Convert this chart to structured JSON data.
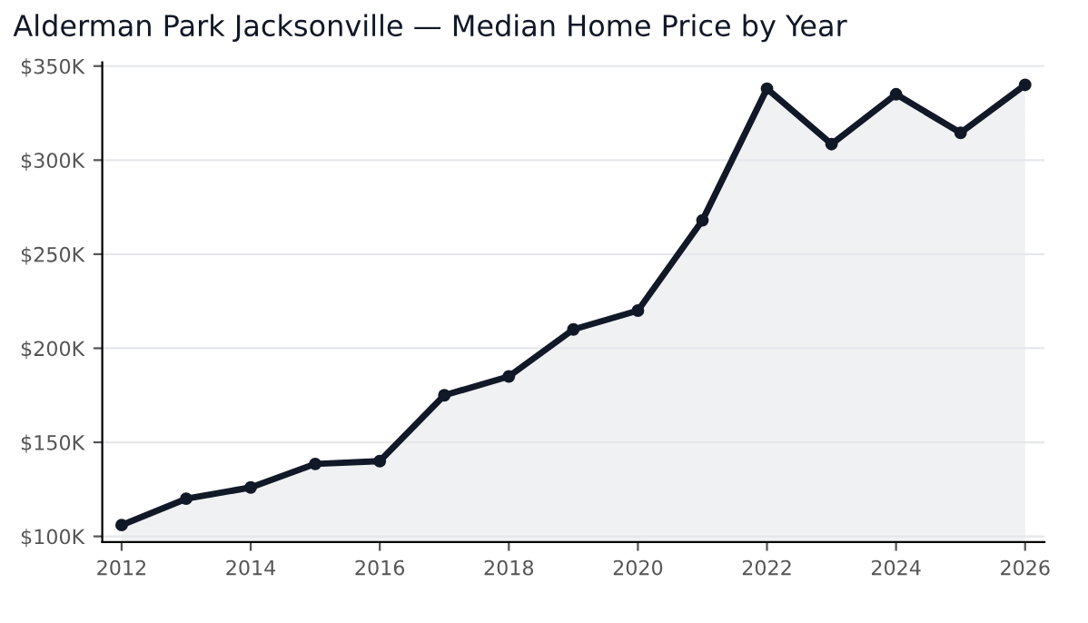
{
  "chart_data": {
    "type": "area",
    "title": "Alderman Park Jacksonville — Median Home Price by Year",
    "x": [
      2012,
      2013,
      2014,
      2015,
      2016,
      2017,
      2018,
      2019,
      2020,
      2021,
      2022,
      2023,
      2024,
      2025,
      2026
    ],
    "series": [
      {
        "color": "#111827",
        "values": [
          106,
          120,
          126,
          138.5,
          140,
          175,
          185,
          210,
          220,
          268,
          338,
          308.5,
          335,
          314.5,
          340
        ]
      }
    ],
    "xlim": [
      2011.7,
      2026.3
    ],
    "xticks": [
      2012,
      2014,
      2016,
      2018,
      2020,
      2022,
      2024,
      2026
    ],
    "ylim": [
      97,
      352
    ],
    "yticks": [
      {
        "value": 100,
        "label": "$100K"
      },
      {
        "value": 150,
        "label": "$150K"
      },
      {
        "value": 200,
        "label": "$200K"
      },
      {
        "value": 250,
        "label": "$250K"
      },
      {
        "value": 300,
        "label": "$300K"
      },
      {
        "value": 350,
        "label": "$350K"
      }
    ],
    "grid": "y",
    "marker": "circle",
    "line_style": "solid",
    "legend": false
  }
}
